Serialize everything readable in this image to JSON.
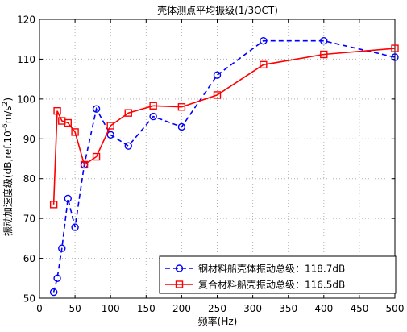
{
  "chart_data": {
    "type": "line",
    "title": "壳体测点平均振级(1/3OCT)",
    "xlabel": "频率(Hz)",
    "ylabel": "振动加速度级(dB,ref.10 -6m/s2)",
    "ylabel_main": "振动加速度级(dB,ref.10",
    "ylabel_exp": "-6",
    "ylabel_unit": "m/s",
    "ylabel_unit_exp": "2",
    "ylabel_close": ")",
    "xlim": [
      0,
      500
    ],
    "ylim": [
      50,
      120
    ],
    "xticks": [
      0,
      50,
      100,
      150,
      200,
      250,
      300,
      350,
      400,
      450,
      500
    ],
    "yticks": [
      50,
      60,
      70,
      80,
      90,
      100,
      110,
      120
    ],
    "grid": true,
    "legend_position": "bottom-right",
    "series": [
      {
        "name": "钢材料船壳体振动总级：118.7dB",
        "color": "#0000ff",
        "line_style": "dashed",
        "marker": "circle",
        "x": [
          20,
          25,
          31.5,
          40,
          50,
          63,
          80,
          100,
          125,
          160,
          200,
          250,
          315,
          400,
          500
        ],
        "y": [
          51.5,
          55,
          62.5,
          75,
          67.8,
          83.5,
          97.5,
          91,
          88.2,
          95.6,
          93,
          106,
          114.6,
          114.6,
          110.5
        ]
      },
      {
        "name": "复合材料船壳振动总级：116.5dB",
        "color": "#ff0000",
        "line_style": "solid",
        "marker": "square",
        "x": [
          20,
          25,
          31.5,
          40,
          50,
          63,
          80,
          100,
          125,
          160,
          200,
          250,
          315,
          400,
          500
        ],
        "y": [
          73.5,
          97,
          94.5,
          94,
          91.7,
          83.5,
          85.5,
          93.3,
          96.5,
          98.3,
          98,
          101,
          108.6,
          111.2,
          112.7
        ]
      }
    ]
  }
}
